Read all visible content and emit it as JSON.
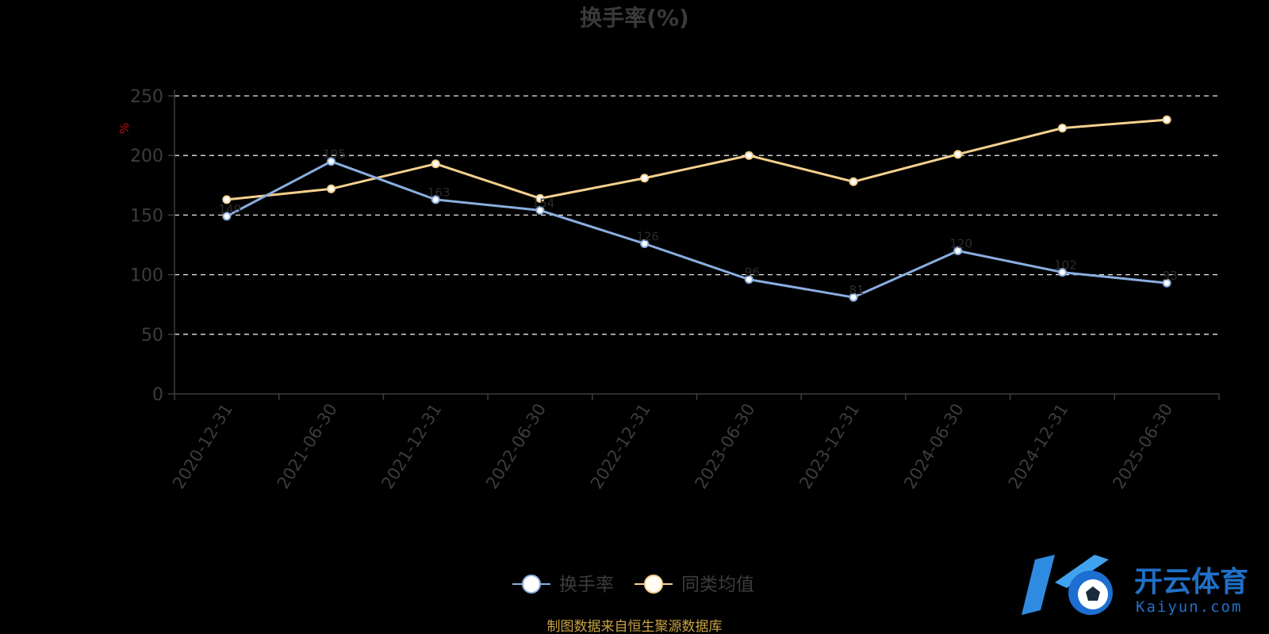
{
  "chart_data": {
    "type": "line",
    "title": "换手率(%)",
    "ylabel": "%",
    "xlabel": "",
    "ylim": [
      0,
      250
    ],
    "yticks": [
      0,
      50,
      100,
      150,
      200,
      250
    ],
    "grid": true,
    "categories": [
      "2020-12-31",
      "2021-06-30",
      "2021-12-31",
      "2022-06-30",
      "2022-12-31",
      "2023-06-30",
      "2023-12-31",
      "2024-06-30",
      "2024-12-31",
      "2025-06-30"
    ],
    "series": [
      {
        "name": "换手率",
        "color": "#8aaee0",
        "values": [
          149,
          195,
          163,
          154,
          126,
          96,
          81,
          120,
          102,
          93
        ]
      },
      {
        "name": "同类均值",
        "color": "#f5d08e",
        "values": [
          163,
          172,
          193,
          164,
          181,
          200,
          178,
          201,
          223,
          230
        ]
      }
    ],
    "legend_position": "bottom-center"
  },
  "footer": {
    "source": "制图数据来自恒生聚源数据库"
  },
  "watermark": {
    "brand_cn": "开云体育",
    "brand_en": "Kaiyun.com"
  }
}
